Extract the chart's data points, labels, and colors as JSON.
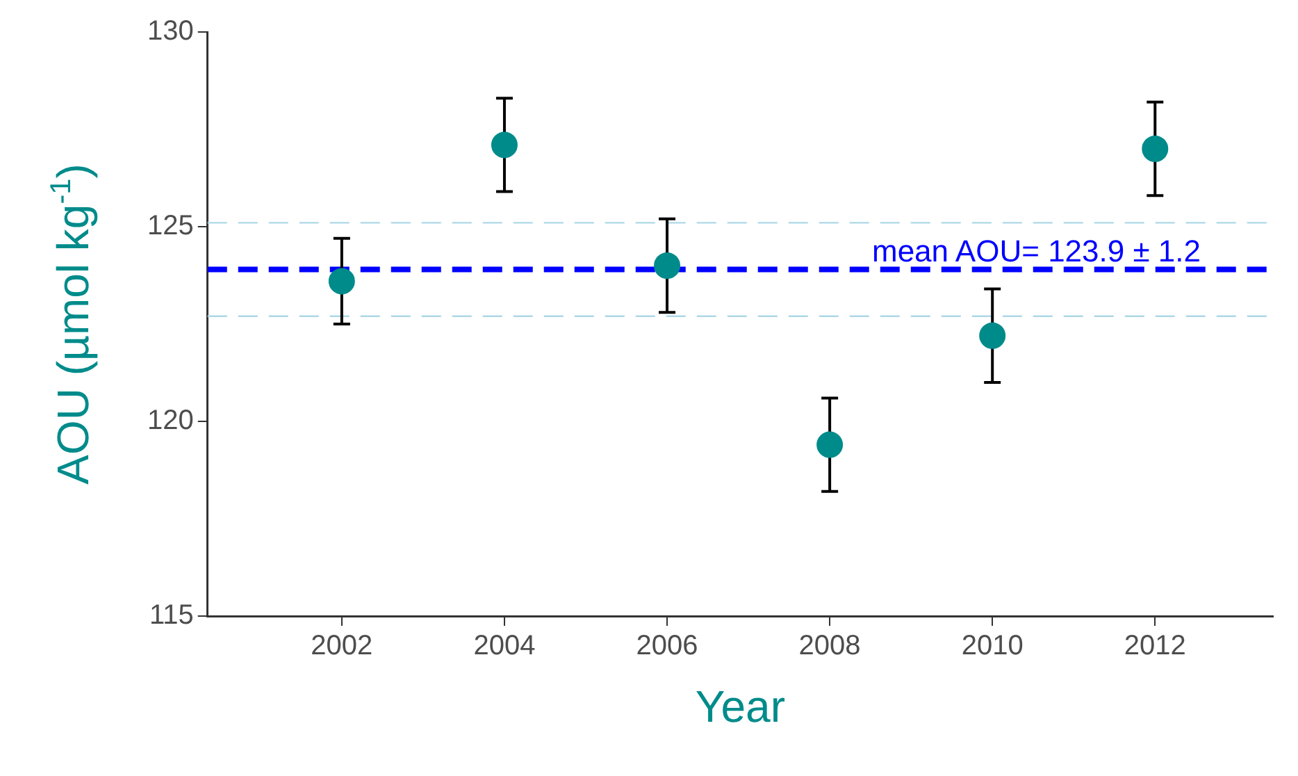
{
  "chart_data": {
    "type": "scatter",
    "xlabel": "Year",
    "ylabel": "AOU (µmol kg$^{-1}$)",
    "x": [
      2002,
      2004,
      2006,
      2008,
      2010,
      2012
    ],
    "series": [
      {
        "color": "#008b8b",
        "values": [
          123.6,
          127.1,
          124.0,
          119.4,
          122.2,
          127.0
        ],
        "errors": [
          1.1,
          1.2,
          1.2,
          1.2,
          1.2,
          1.2
        ]
      }
    ],
    "xlim": [
      2000.35,
      2013.45
    ],
    "xticks": [
      2002,
      2004,
      2006,
      2008,
      2010,
      2012
    ],
    "ylim": [
      115,
      130
    ],
    "yticks": [
      115,
      120,
      125,
      130
    ],
    "ref_lines": [
      {
        "axis": "y",
        "value": 123.9,
        "label": "mean AOU= 123.9 ± 1.2",
        "color": "#0000ff",
        "line_style": "dashed"
      },
      {
        "axis": "y",
        "value": 125.1,
        "color": "#add8e6",
        "line_style": "dashed"
      },
      {
        "axis": "y",
        "value": 122.7,
        "color": "#add8e6",
        "line_style": "dashed"
      }
    ],
    "grid": false,
    "legend": false,
    "marker": "circle"
  }
}
